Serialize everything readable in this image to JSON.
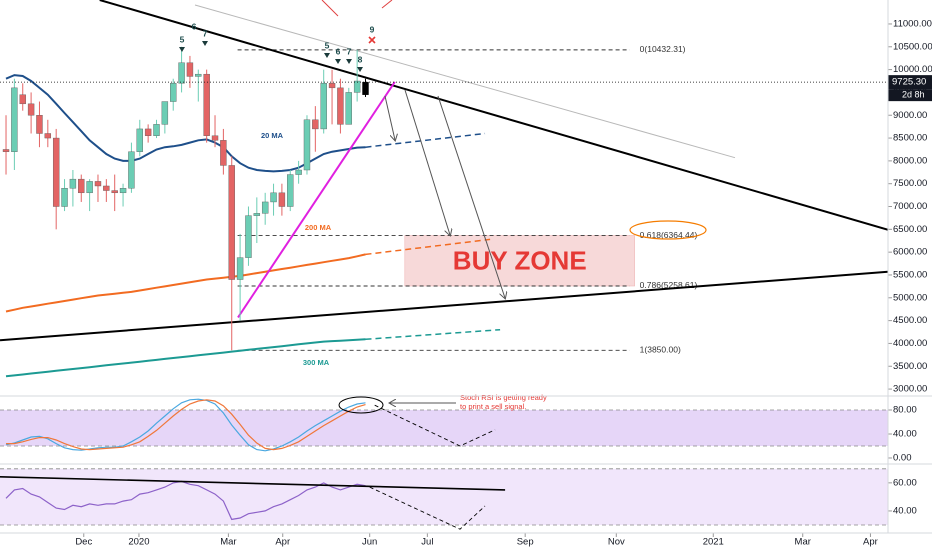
{
  "chart_data": [
    {
      "type": "candlestick",
      "xlim": [
        -0.72,
        105.5
      ],
      "xticks": [
        {
          "value": 9.3,
          "label": "Dec"
        },
        {
          "value": 15.9,
          "label": "2020"
        },
        {
          "value": 26.6,
          "label": "Mar"
        },
        {
          "value": 33.1,
          "label": "Apr"
        },
        {
          "value": 43.5,
          "label": "Jun"
        },
        {
          "value": 50.4,
          "label": "Jul"
        },
        {
          "value": 62.1,
          "label": "Sep"
        },
        {
          "value": 73,
          "label": "Nov"
        },
        {
          "value": 84.6,
          "label": "2021"
        },
        {
          "value": 95.3,
          "label": "Mar"
        },
        {
          "value": 103.4,
          "label": "Apr"
        }
      ],
      "ylim": [
        2870,
        11525
      ],
      "yticks": [
        {
          "value": 3000,
          "label": "3000.00"
        },
        {
          "value": 3500,
          "label": "3500.00"
        },
        {
          "value": 4000,
          "label": "4000.00"
        },
        {
          "value": 4500,
          "label": "4500.00"
        },
        {
          "value": 5000,
          "label": "5000.00"
        },
        {
          "value": 5500,
          "label": "5500.00"
        },
        {
          "value": 6000,
          "label": "6000.00"
        },
        {
          "value": 6500,
          "label": "6500.00"
        },
        {
          "value": 7000,
          "label": "7000.00"
        },
        {
          "value": 7500,
          "label": "7500.00"
        },
        {
          "value": 8000,
          "label": "8000.00"
        },
        {
          "value": 8500,
          "label": "8500.00"
        },
        {
          "value": 9000,
          "label": "9000.00"
        },
        {
          "value": 9500,
          "label": "9500.00"
        },
        {
          "value": 10000,
          "label": "10000.00"
        },
        {
          "value": 10500,
          "label": "10500.00"
        },
        {
          "value": 11000,
          "label": "11000.00"
        }
      ],
      "up_color": "#6bcdb4",
      "down_color": "#e36464",
      "last_color": "#000000",
      "open": [
        8250,
        8200,
        9450,
        9250,
        9000,
        8600,
        8500,
        7000,
        7400,
        7600,
        7300,
        7550,
        7450,
        7350,
        7300,
        7400,
        8200,
        8700,
        8550,
        8800,
        9300,
        9700,
        10150,
        9850,
        9900,
        8550,
        8450,
        7900,
        5400,
        5880,
        6800,
        6850,
        7100,
        7300,
        7000,
        7700,
        7800,
        8900,
        8700,
        9700,
        9600,
        8800,
        9500,
        9450
      ],
      "high": [
        9000,
        9800,
        9700,
        9500,
        9300,
        8900,
        8700,
        7600,
        7800,
        7700,
        7600,
        7700,
        7600,
        7700,
        7500,
        8400,
        8900,
        8800,
        8900,
        9300,
        9800,
        10500,
        10300,
        10000,
        10000,
        9000,
        8700,
        8100,
        6400,
        7000,
        7200,
        7300,
        7500,
        7500,
        7800,
        8000,
        9000,
        9200,
        10000,
        10000,
        9800,
        9600,
        10432,
        9800
      ],
      "low": [
        7700,
        7800,
        9100,
        8600,
        8300,
        8300,
        6500,
        6900,
        7000,
        7100,
        6900,
        7100,
        7100,
        6900,
        7000,
        7300,
        8100,
        8400,
        8500,
        8600,
        9100,
        9500,
        9600,
        9300,
        8400,
        8300,
        7700,
        3850,
        4500,
        5700,
        6200,
        6600,
        6800,
        6800,
        6900,
        7500,
        7700,
        8200,
        8600,
        8800,
        8600,
        8800,
        9300,
        9400
      ],
      "close": [
        8200,
        9600,
        9250,
        9000,
        8600,
        8500,
        7000,
        7400,
        7600,
        7300,
        7550,
        7450,
        7350,
        7300,
        7400,
        8200,
        8700,
        8550,
        8800,
        9300,
        9700,
        10150,
        9850,
        9900,
        8550,
        8450,
        7900,
        5400,
        5880,
        6800,
        6850,
        7100,
        7300,
        7000,
        7700,
        7800,
        8900,
        8700,
        9700,
        9600,
        8800,
        9500,
        9750,
        9725.3
      ],
      "price_label": "9725.30",
      "countdown": "2d 8h",
      "series": [
        {
          "name": "20 MA",
          "color": "#1e4f8a",
          "values": [
            9800,
            9880,
            9860,
            9750,
            9600,
            9450,
            9250,
            9050,
            8850,
            8650,
            8450,
            8300,
            8150,
            8050,
            8000,
            8000,
            8050,
            8150,
            8250,
            8300,
            8320,
            8350,
            8400,
            8450,
            8470,
            8400,
            8300,
            8100,
            7950,
            7850,
            7800,
            7780,
            7770,
            7780,
            7800,
            7850,
            7950,
            8050,
            8150,
            8200,
            8230,
            8260,
            8290,
            8300
          ],
          "projection": {
            "x": [
              43,
              57.3
            ],
            "values": [
              8300,
              8600
            ]
          }
        },
        {
          "name": "200 MA",
          "color": "#f26b21",
          "values": [
            4700,
            4740,
            4780,
            4810,
            4840,
            4870,
            4900,
            4930,
            4960,
            4990,
            5020,
            5050,
            5070,
            5090,
            5110,
            5130,
            5160,
            5190,
            5220,
            5250,
            5280,
            5310,
            5340,
            5370,
            5400,
            5420,
            5440,
            5460,
            5480,
            5510,
            5540,
            5570,
            5600,
            5630,
            5660,
            5690,
            5720,
            5750,
            5780,
            5810,
            5840,
            5870,
            5910,
            5950
          ],
          "projection": {
            "x": [
              43,
              57.9
            ],
            "values": [
              5950,
              6280
            ]
          }
        },
        {
          "name": "300 MA",
          "color": "#1c9a93",
          "values": [
            3280,
            3300,
            3320,
            3340,
            3360,
            3380,
            3400,
            3420,
            3440,
            3460,
            3480,
            3500,
            3520,
            3540,
            3560,
            3580,
            3600,
            3620,
            3640,
            3660,
            3680,
            3700,
            3720,
            3740,
            3760,
            3780,
            3800,
            3820,
            3840,
            3860,
            3880,
            3900,
            3920,
            3940,
            3960,
            3980,
            4000,
            4020,
            4040,
            4050,
            4060,
            4070,
            4080,
            4090
          ],
          "projection": {
            "x": [
              43,
              59.1
            ],
            "values": [
              4090,
              4300
            ]
          }
        }
      ],
      "trendlines": [
        {
          "color": "#000000",
          "x": [
            11.2,
            105.5
          ],
          "values": [
            11525,
            6490
          ]
        },
        {
          "color": "#000000",
          "x": [
            -0.72,
            105.5
          ],
          "values": [
            4070,
            5570
          ]
        },
        {
          "color": "#b8b8b8",
          "x": [
            22.6,
            87.2
          ],
          "values": [
            11415,
            8070
          ]
        },
        {
          "color": "#e020e0",
          "x": [
            27.75,
            46.5
          ],
          "values": [
            4570,
            9730
          ]
        }
      ],
      "fib": {
        "x": [
          27.7,
          74.6
        ],
        "levels": [
          {
            "label": "0(10432.31)",
            "value": 10432.31
          },
          {
            "label": "0.618(6364.44)",
            "value": 6364.44
          },
          {
            "label": "0.786(5258.61)",
            "value": 5258.61
          },
          {
            "label": "1(3850.00)",
            "value": 3850
          }
        ]
      },
      "zone": {
        "label": "BUY ZONE",
        "x": [
          47.7,
          75.2
        ],
        "color": "#f7d9d9"
      },
      "setup_counts": [
        5,
        6,
        7,
        5,
        6,
        7,
        8,
        9
      ]
    },
    {
      "type": "line",
      "ylim": [
        -6.7,
        100
      ],
      "yticks": [
        {
          "value": 0,
          "label": "0.00"
        },
        {
          "value": 40,
          "label": "40.00"
        },
        {
          "value": 80,
          "label": "80.00"
        }
      ],
      "band": [
        20,
        80
      ],
      "band_color": "#e6d6f8",
      "series": [
        {
          "color": "#4aa8e0",
          "values": [
            22,
            25,
            30,
            35,
            36,
            32,
            24,
            17,
            14,
            13,
            15,
            17,
            18,
            18,
            20,
            27,
            35,
            45,
            58,
            70,
            82,
            92,
            97,
            98,
            96,
            90,
            75,
            55,
            38,
            22,
            14,
            12,
            15,
            20,
            27,
            35,
            45,
            54,
            62,
            70,
            78,
            85,
            90,
            92
          ]
        },
        {
          "color": "#f0773a",
          "values": [
            24,
            24,
            27,
            31,
            34,
            34,
            30,
            24,
            19,
            15,
            14,
            15,
            16,
            17,
            18,
            22,
            27,
            36,
            46,
            58,
            70,
            81,
            90,
            95,
            97,
            95,
            87,
            73,
            56,
            38,
            25,
            16,
            14,
            16,
            21,
            27,
            36,
            45,
            54,
            62,
            70,
            78,
            85,
            89
          ]
        }
      ],
      "projection": {
        "x": [
          44.1,
          54.3,
          58.5
        ],
        "values": [
          88,
          20,
          47
        ]
      },
      "note": [
        "Stoch RSI is getting ready",
        "to print a sell signal."
      ]
    },
    {
      "type": "line",
      "ylim": [
        25,
        72
      ],
      "yticks": [
        {
          "value": 40,
          "label": "40.00"
        },
        {
          "value": 60,
          "label": "60.00"
        }
      ],
      "band": [
        30,
        70
      ],
      "band_color": "#f1e6fb",
      "series": [
        {
          "color": "#8d62c9",
          "values": [
            49,
            55,
            56,
            52,
            50,
            46,
            42,
            41,
            44,
            43,
            45,
            44,
            45,
            45,
            47,
            48,
            52,
            53,
            55,
            57,
            60,
            61,
            59,
            58,
            55,
            52,
            47,
            34,
            35,
            38,
            39,
            40,
            43,
            45,
            48,
            51,
            55,
            57,
            60,
            57,
            55,
            57,
            59,
            58
          ]
        }
      ],
      "projection": {
        "x": [
          43.5,
          54.3,
          57.3
        ],
        "values": [
          57,
          27,
          43.5
        ]
      },
      "trendline": {
        "color": "#000000",
        "x": [
          -0.72,
          59.7
        ],
        "values": [
          64.3,
          55
        ]
      }
    }
  ]
}
